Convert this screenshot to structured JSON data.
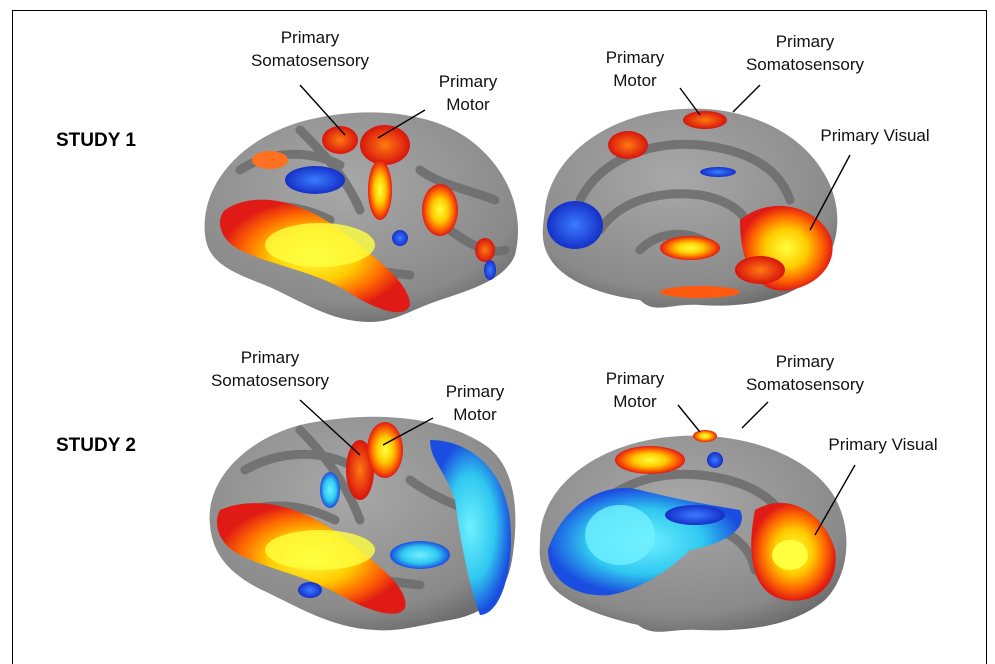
{
  "studies": [
    {
      "label": "STUDY 1",
      "lateral": {
        "somatosensory": {
          "line1": "Primary",
          "line2": "Somatosensory"
        },
        "motor": {
          "line1": "Primary",
          "line2": "Motor"
        }
      },
      "medial": {
        "motor": {
          "line1": "Primary",
          "line2": "Motor"
        },
        "somatosensory": {
          "line1": "Primary",
          "line2": "Somatosensory"
        },
        "visual": {
          "line1": "Primary Visual"
        }
      }
    },
    {
      "label": "STUDY 2",
      "lateral": {
        "somatosensory": {
          "line1": "Primary",
          "line2": "Somatosensory"
        },
        "motor": {
          "line1": "Primary",
          "line2": "Motor"
        }
      },
      "medial": {
        "motor": {
          "line1": "Primary",
          "line2": "Motor"
        },
        "somatosensory": {
          "line1": "Primary",
          "line2": "Somatosensory"
        },
        "visual": {
          "line1": "Primary Visual"
        }
      }
    }
  ],
  "colors": {
    "cortex_light": "#9a9a9a",
    "cortex_dark": "#6f6f6f",
    "activation_hot": "#e8231a",
    "activation_warm": "#ff8c00",
    "activation_peak": "#ffff33",
    "deactivation_deep": "#1a3fd6",
    "deactivation_light": "#3fd0f0"
  }
}
